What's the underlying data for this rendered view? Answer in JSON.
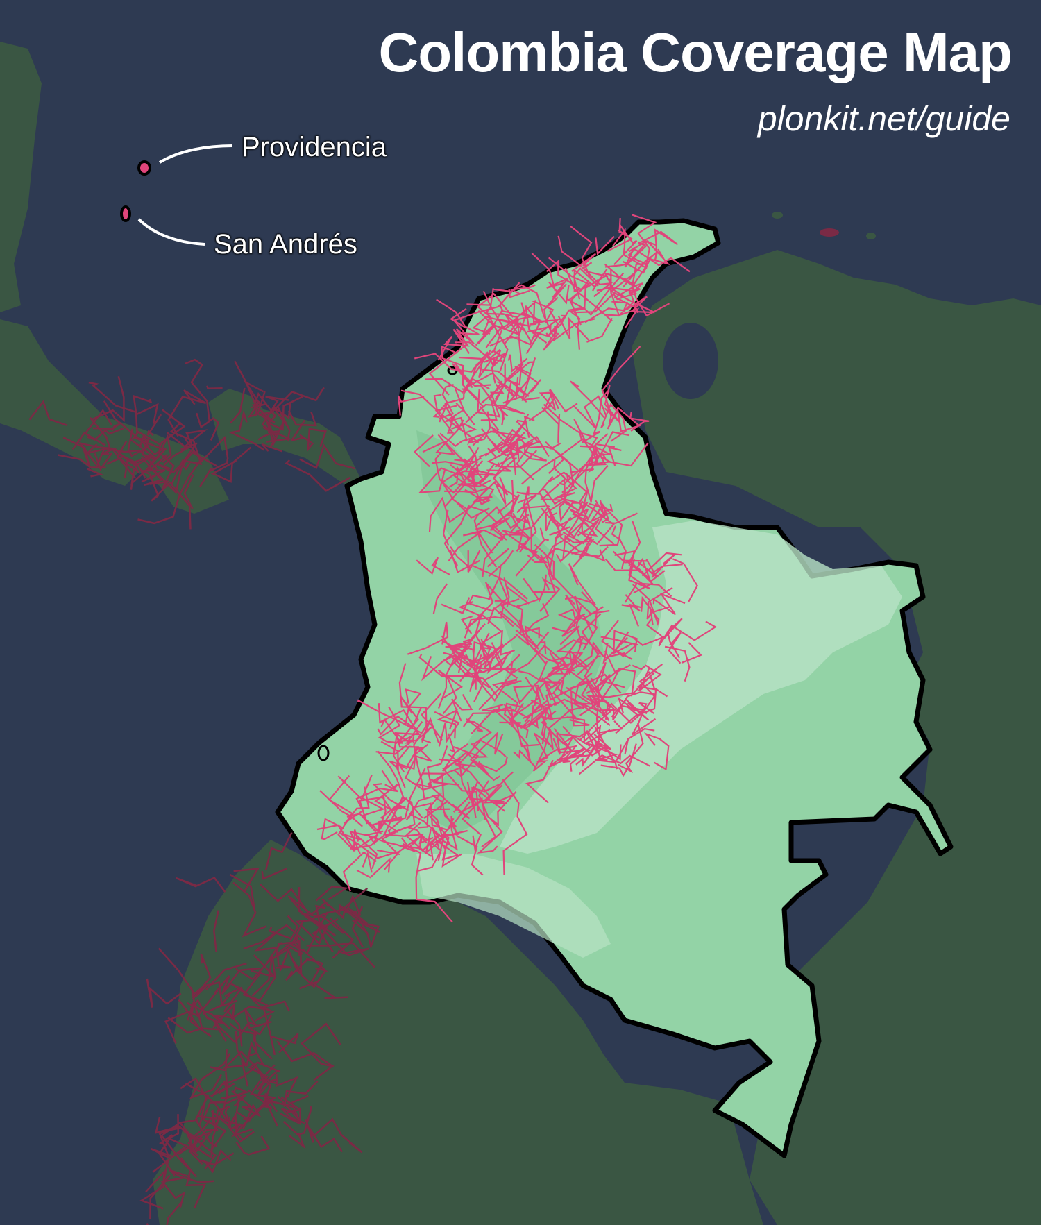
{
  "title": "Colombia Coverage Map",
  "subtitle": "plonkit.net/guide",
  "islands": [
    {
      "name": "Providencia"
    },
    {
      "name": "San Andrés"
    }
  ],
  "colors": {
    "ocean": "#2e3a52",
    "neighbor_land": "#3a5643",
    "colombia_land": "#93d3a6",
    "colombia_land_light": "#b8e2c5",
    "colombia_border": "#000000",
    "coverage_roads": "#e0457b",
    "neighbor_coverage": "#7a2a45",
    "label_text": "#ffffff"
  },
  "legend": {
    "coverage_color_meaning": "pink lines = Street View coverage"
  }
}
